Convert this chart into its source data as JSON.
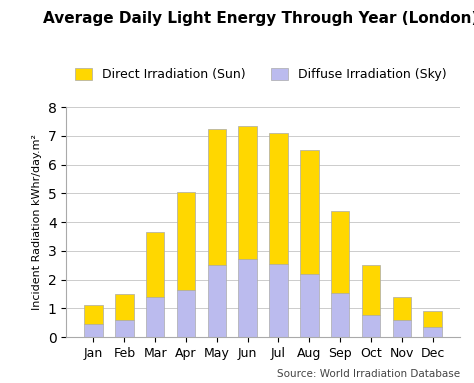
{
  "months": [
    "Jan",
    "Feb",
    "Mar",
    "Apr",
    "May",
    "Jun",
    "Jul",
    "Aug",
    "Sep",
    "Oct",
    "Nov",
    "Dec"
  ],
  "diffuse": [
    0.45,
    0.6,
    1.4,
    1.65,
    2.5,
    2.7,
    2.55,
    2.2,
    1.55,
    0.75,
    0.6,
    0.35
  ],
  "direct": [
    0.65,
    0.9,
    2.25,
    3.4,
    4.75,
    4.65,
    4.55,
    4.3,
    2.85,
    1.75,
    0.8,
    0.55
  ],
  "direct_color": "#FFD700",
  "diffuse_color": "#BBBBEE",
  "title": "Average Daily Light Energy Through Year (London)",
  "ylabel": "Incident Radiation kWhr/day.m²",
  "ylim": [
    0,
    8
  ],
  "yticks": [
    0,
    1,
    2,
    3,
    4,
    5,
    6,
    7,
    8
  ],
  "legend_direct": "Direct Irradiation (Sun)",
  "legend_diffuse": "Diffuse Irradiation (Sky)",
  "source": "Source: World Irradiation Database",
  "bar_edge_color": "#aaaaaa",
  "bar_width": 0.6
}
